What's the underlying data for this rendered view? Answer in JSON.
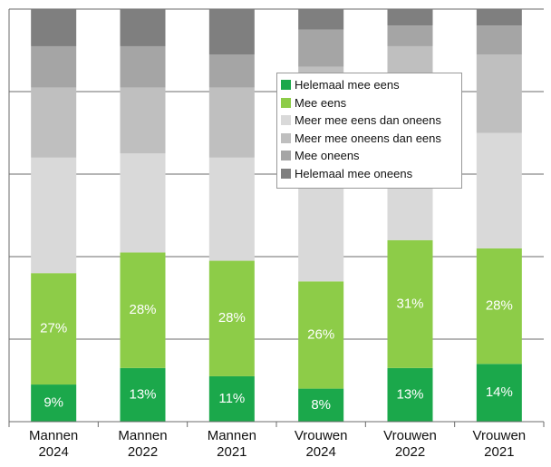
{
  "chart_data": {
    "type": "stacked_bar",
    "categories": [
      "Mannen 2024",
      "Mannen 2022",
      "Mannen 2021",
      "Vrouwen 2024",
      "Vrouwen 2022",
      "Vrouwen 2021"
    ],
    "series": [
      {
        "name": "Helemaal mee eens",
        "color": "#1ba84b",
        "values": [
          9,
          13,
          11,
          8,
          13,
          14
        ],
        "value_labels": [
          "9%",
          "13%",
          "11%",
          "8%",
          "13%",
          "14%"
        ]
      },
      {
        "name": "Mee eens",
        "color": "#8dcc48",
        "values": [
          27,
          28,
          28,
          26,
          31,
          28
        ],
        "value_labels": [
          "27%",
          "28%",
          "28%",
          "26%",
          "31%",
          "28%"
        ]
      },
      {
        "name": "Meer mee eens dan oneens",
        "color": "#d9d9d9",
        "values": [
          28,
          24,
          25,
          35,
          30,
          28
        ]
      },
      {
        "name": "Meer mee oneens dan eens",
        "color": "#bfbfbf",
        "values": [
          17,
          16,
          17,
          17,
          17,
          19
        ]
      },
      {
        "name": "Mee oneens",
        "color": "#a5a5a5",
        "values": [
          10,
          10,
          8,
          9,
          5,
          7
        ]
      },
      {
        "name": "Helemaal mee oneens",
        "color": "#7f7f7f",
        "values": [
          9,
          9,
          11,
          5,
          4,
          4
        ]
      }
    ],
    "ylim": [
      0,
      100
    ],
    "yticks": [
      0,
      20,
      40,
      60,
      80,
      100
    ],
    "grid": true,
    "legend": "top-right"
  }
}
